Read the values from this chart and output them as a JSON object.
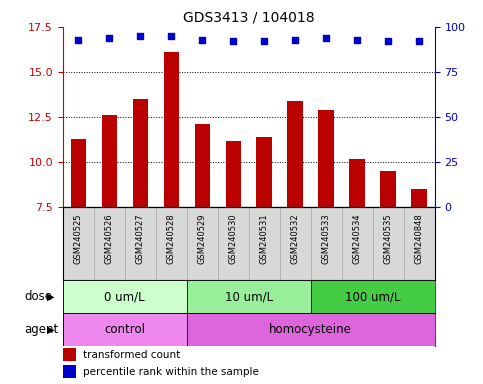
{
  "title": "GDS3413 / 104018",
  "samples": [
    "GSM240525",
    "GSM240526",
    "GSM240527",
    "GSM240528",
    "GSM240529",
    "GSM240530",
    "GSM240531",
    "GSM240532",
    "GSM240533",
    "GSM240534",
    "GSM240535",
    "GSM240848"
  ],
  "bar_values": [
    11.3,
    12.6,
    13.5,
    16.1,
    12.1,
    11.2,
    11.4,
    13.4,
    12.9,
    10.2,
    9.5,
    8.5
  ],
  "dot_values": [
    93,
    94,
    95,
    95,
    93,
    92,
    92,
    93,
    94,
    93,
    92,
    92
  ],
  "bar_color": "#bb0000",
  "dot_color": "#0000cc",
  "ylim_left": [
    7.5,
    17.5
  ],
  "ylim_right": [
    0,
    100
  ],
  "yticks_left": [
    7.5,
    10.0,
    12.5,
    15.0,
    17.5
  ],
  "yticks_right": [
    0,
    25,
    50,
    75,
    100
  ],
  "grid_values": [
    10.0,
    12.5,
    15.0
  ],
  "dose_groups": [
    {
      "label": "0 um/L",
      "start": 0,
      "end": 4,
      "color": "#ccffcc"
    },
    {
      "label": "10 um/L",
      "start": 4,
      "end": 8,
      "color": "#99ee99"
    },
    {
      "label": "100 um/L",
      "start": 8,
      "end": 12,
      "color": "#44cc44"
    }
  ],
  "agent_groups": [
    {
      "label": "control",
      "start": 0,
      "end": 4,
      "color": "#ee88ee"
    },
    {
      "label": "homocysteine",
      "start": 4,
      "end": 12,
      "color": "#dd66dd"
    }
  ],
  "dose_label": "dose",
  "agent_label": "agent",
  "legend_bar_label": "transformed count",
  "legend_dot_label": "percentile rank within the sample",
  "right_axis_color": "#0000cc",
  "left_axis_color": "#cc0000",
  "title_fontsize": 10,
  "tick_fontsize": 8,
  "label_fontsize": 8.5,
  "sample_bg_color": "#d8d8d8",
  "sample_border_color": "#aaaaaa"
}
